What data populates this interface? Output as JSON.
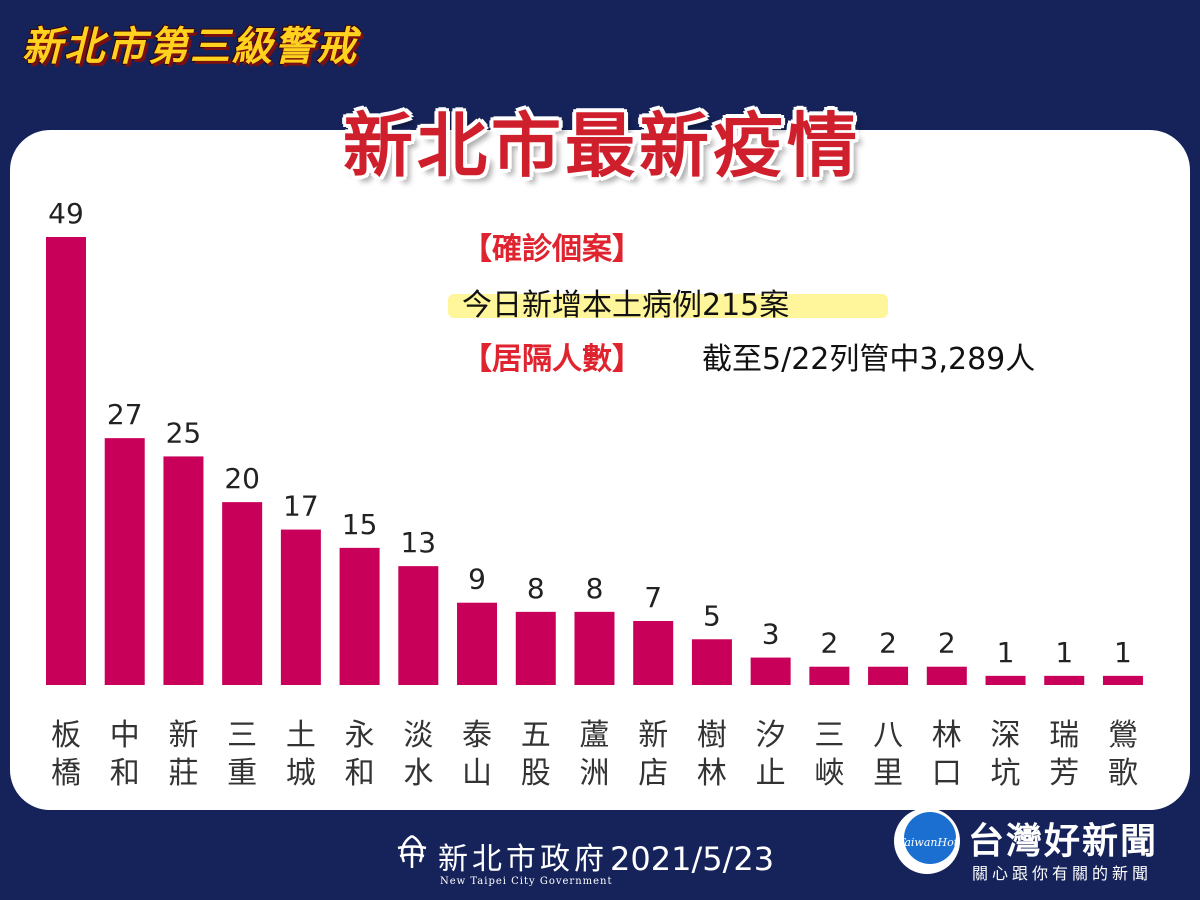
{
  "header": {
    "alert_title": "新北市第三級警戒",
    "main_title": "新北市最新疫情"
  },
  "info": {
    "confirmed_label": "【確診個案】",
    "confirmed_text": "今日新增本土病例215案",
    "quarantine_label": "【居隔人數】",
    "quarantine_text": "截至5/22列管中3,289人"
  },
  "chart_data": {
    "type": "bar",
    "categories": [
      "板橋",
      "中和",
      "新莊",
      "三重",
      "土城",
      "永和",
      "淡水",
      "泰山",
      "五股",
      "蘆洲",
      "新店",
      "樹林",
      "汐止",
      "三峽",
      "八里",
      "林口",
      "深坑",
      "瑞芳",
      "鶯歌"
    ],
    "values": [
      49,
      27,
      25,
      20,
      17,
      15,
      13,
      9,
      8,
      8,
      7,
      5,
      3,
      2,
      2,
      2,
      1,
      1,
      1
    ],
    "title": "",
    "xlabel": "",
    "ylabel": "",
    "ylim": [
      0,
      49
    ],
    "grid": false,
    "legend": "none",
    "bar_color": "#c8005a"
  },
  "footer": {
    "gov_name": "新北市政府",
    "gov_name_en": "New Taipei City Government",
    "date": "2021/5/23",
    "news_name": "台灣好新聞",
    "news_slogan": "關心跟你有關的新聞",
    "news_logo_text": "TaiwanHot"
  },
  "colors": {
    "background": "#16235a",
    "accent_red": "#d01f2c",
    "accent_yellow": "#ffd21f",
    "highlight": "#fff59a"
  }
}
